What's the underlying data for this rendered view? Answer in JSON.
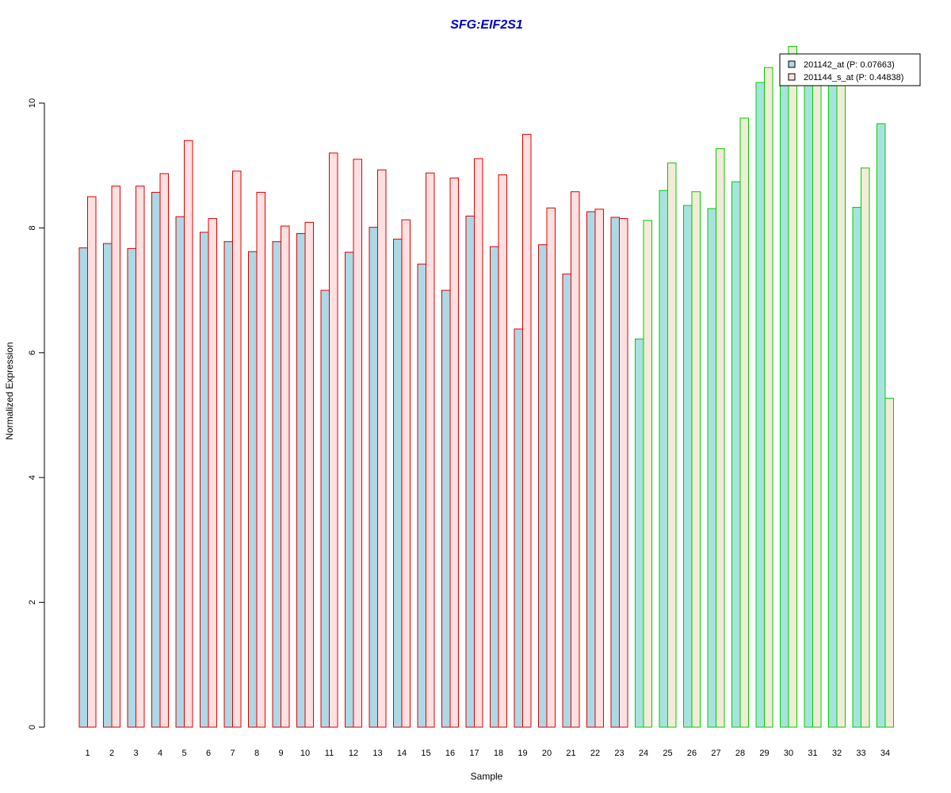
{
  "chart_data": {
    "type": "bar",
    "title": "SFG:EIF2S1",
    "xlabel": "Sample",
    "ylabel": "Normalized Expression",
    "ylim": [
      0,
      10.9
    ],
    "yticks": [
      0,
      2,
      4,
      6,
      8,
      10
    ],
    "grid": false,
    "legend_position": "top-right",
    "categories": [
      "1",
      "2",
      "3",
      "4",
      "5",
      "6",
      "7",
      "8",
      "9",
      "10",
      "11",
      "12",
      "13",
      "14",
      "15",
      "16",
      "17",
      "18",
      "19",
      "20",
      "21",
      "22",
      "23",
      "24",
      "25",
      "26",
      "27",
      "28",
      "29",
      "30",
      "31",
      "32",
      "33",
      "34"
    ],
    "series": [
      {
        "name": "201142_at (P: 0.07663)",
        "values": [
          7.68,
          7.75,
          7.67,
          8.57,
          8.18,
          7.93,
          7.78,
          7.62,
          7.78,
          7.91,
          7.0,
          7.61,
          8.01,
          7.82,
          7.42,
          7.0,
          8.19,
          7.7,
          6.38,
          7.73,
          7.26,
          8.26,
          8.17,
          6.22,
          8.6,
          8.36,
          8.31,
          8.74,
          10.33,
          10.74,
          10.6,
          10.5,
          8.33,
          9.67
        ]
      },
      {
        "name": "201144_s_at (P: 0.44838)",
        "values": [
          8.5,
          8.67,
          8.67,
          8.87,
          9.4,
          8.15,
          8.91,
          8.57,
          8.03,
          8.09,
          9.2,
          9.1,
          8.93,
          8.13,
          8.88,
          8.8,
          9.11,
          8.85,
          9.5,
          8.32,
          8.58,
          8.3,
          8.15,
          8.12,
          9.04,
          8.58,
          9.27,
          9.76,
          10.57,
          10.91,
          10.65,
          10.5,
          8.96,
          5.27
        ]
      }
    ],
    "groups": [
      {
        "from": 1,
        "to": 23,
        "border": "#dd0000",
        "fills": [
          "#add8e6",
          "#ffe0e0"
        ]
      },
      {
        "from": 24,
        "to": 34,
        "border": "#00cc00",
        "fills": [
          "#a6e3dd",
          "#f1ecd6"
        ]
      }
    ],
    "title_color": "#0000cc",
    "legend_fills": [
      "#add8e6",
      "#ffe0e0"
    ]
  }
}
